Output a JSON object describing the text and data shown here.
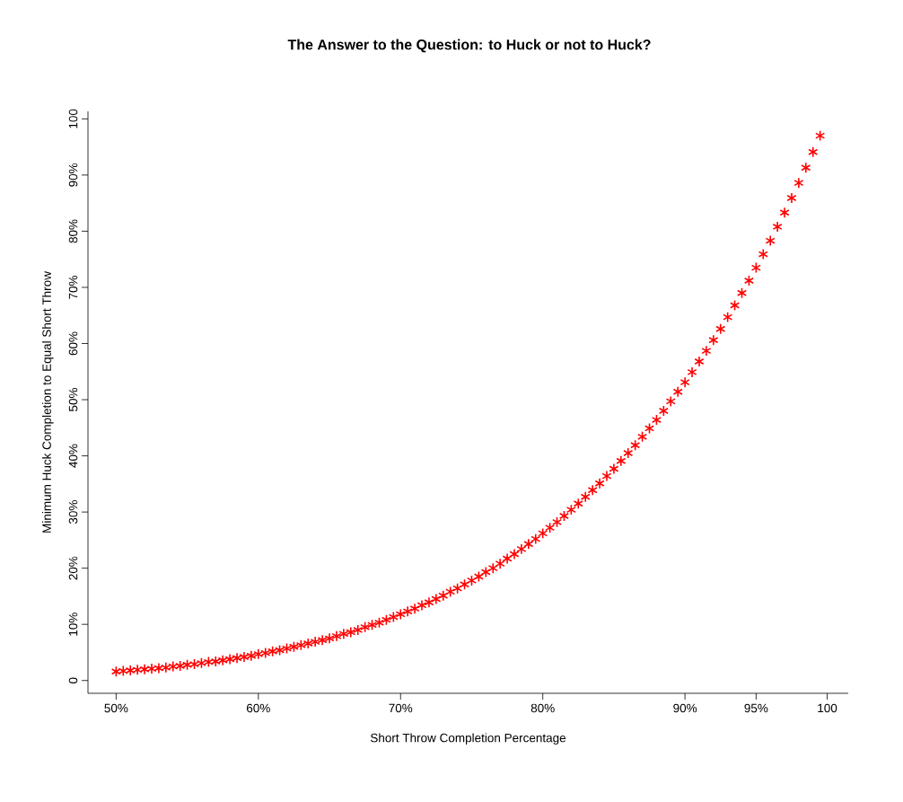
{
  "chart_data": {
    "type": "scatter",
    "title": "The Answer to the Question: to Huck or not to Huck?",
    "xlabel": "Short Throw Completion Percentage",
    "ylabel": "Minimum Huck Completion to Equal Short Throw",
    "x": [
      50,
      50.5,
      51,
      51.5,
      52,
      52.5,
      53,
      53.5,
      54,
      54.5,
      55,
      55.5,
      56,
      56.5,
      57,
      57.5,
      58,
      58.5,
      59,
      59.5,
      60,
      60.5,
      61,
      61.5,
      62,
      62.5,
      63,
      63.5,
      64,
      64.5,
      65,
      65.5,
      66,
      66.5,
      67,
      67.5,
      68,
      68.5,
      69,
      69.5,
      70,
      70.5,
      71,
      71.5,
      72,
      72.5,
      73,
      73.5,
      74,
      74.5,
      75,
      75.5,
      76,
      76.5,
      77,
      77.5,
      78,
      78.5,
      79,
      79.5,
      80,
      80.5,
      81,
      81.5,
      82,
      82.5,
      83,
      83.5,
      84,
      84.5,
      85,
      85.5,
      86,
      86.5,
      87,
      87.5,
      88,
      88.5,
      89,
      89.5,
      90,
      90.5,
      91,
      91.5,
      92,
      92.5,
      93,
      93.5,
      94,
      94.5,
      95,
      95.5,
      96,
      96.5,
      97,
      97.5,
      98,
      98.5,
      99,
      99.5
    ],
    "series": [
      {
        "color": "#ff0000",
        "values": [
          1.6,
          1.7,
          1.8,
          1.9,
          2.0,
          2.1,
          2.2,
          2.3,
          2.5,
          2.6,
          2.8,
          2.9,
          3.1,
          3.3,
          3.4,
          3.6,
          3.8,
          4.0,
          4.2,
          4.4,
          4.7,
          4.9,
          5.2,
          5.4,
          5.7,
          6.0,
          6.3,
          6.6,
          6.9,
          7.2,
          7.5,
          7.9,
          8.3,
          8.6,
          9.0,
          9.5,
          9.9,
          10.3,
          10.8,
          11.3,
          11.8,
          12.3,
          12.8,
          13.4,
          13.9,
          14.5,
          15.1,
          15.8,
          16.4,
          17.1,
          17.8,
          18.5,
          19.3,
          20.0,
          20.8,
          21.7,
          22.5,
          23.4,
          24.3,
          25.2,
          26.2,
          27.2,
          28.2,
          29.3,
          30.4,
          31.5,
          32.7,
          33.9,
          35.1,
          36.4,
          37.7,
          39.1,
          40.5,
          41.9,
          43.4,
          44.9,
          46.4,
          48.0,
          49.7,
          51.4,
          53.1,
          54.9,
          56.8,
          58.7,
          60.6,
          62.6,
          64.7,
          66.8,
          69.0,
          71.2,
          73.5,
          75.9,
          78.3,
          80.8,
          83.3,
          85.9,
          88.6,
          91.3,
          94.1,
          97.0
        ]
      }
    ],
    "marker": "cross",
    "xlim": [
      48.02,
      101.48
    ],
    "ylim": [
      -2.28,
      101.34
    ],
    "xticks": [
      {
        "value": 50,
        "label": "50%"
      },
      {
        "value": 60,
        "label": "60%"
      },
      {
        "value": 70,
        "label": "70%"
      },
      {
        "value": 80,
        "label": "80%"
      },
      {
        "value": 90,
        "label": "90%"
      },
      {
        "value": 95,
        "label": "95%"
      },
      100
    ],
    "yticks": [
      0,
      {
        "value": 10,
        "label": "10%"
      },
      {
        "value": 20,
        "label": "20%"
      },
      {
        "value": 30,
        "label": "30%"
      },
      {
        "value": 40,
        "label": "40%"
      },
      {
        "value": 50,
        "label": "50%"
      },
      {
        "value": 60,
        "label": "60%"
      },
      {
        "value": 70,
        "label": "70%"
      },
      {
        "value": 80,
        "label": "80%"
      },
      {
        "value": 90,
        "label": "90%"
      },
      100
    ]
  }
}
